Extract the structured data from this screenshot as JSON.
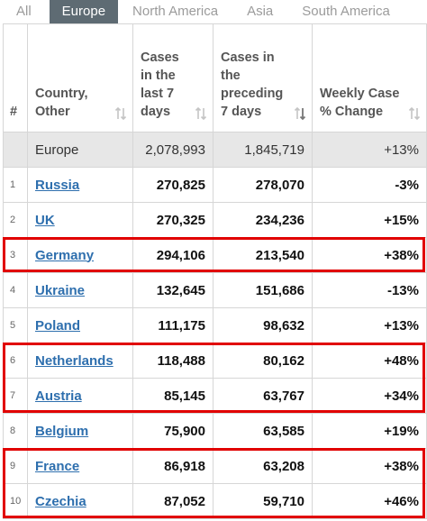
{
  "tabs": [
    "All",
    "Europe",
    "North America",
    "Asia",
    "South America"
  ],
  "active_tab": "Europe",
  "columns": {
    "rank": "#",
    "country": "Country, Other",
    "last7": "Cases in the last 7 days",
    "prev7": "Cases in the preceding 7 days",
    "change": "Weekly Case % Change"
  },
  "summary": {
    "name": "Europe",
    "last7": "2,078,993",
    "prev7": "1,845,719",
    "change": "+13%"
  },
  "rows": [
    {
      "rank": "1",
      "country": "Russia",
      "last7": "270,825",
      "prev7": "278,070",
      "change": "-3%"
    },
    {
      "rank": "2",
      "country": "UK",
      "last7": "270,325",
      "prev7": "234,236",
      "change": "+15%"
    },
    {
      "rank": "3",
      "country": "Germany",
      "last7": "294,106",
      "prev7": "213,540",
      "change": "+38%"
    },
    {
      "rank": "4",
      "country": "Ukraine",
      "last7": "132,645",
      "prev7": "151,686",
      "change": "-13%"
    },
    {
      "rank": "5",
      "country": "Poland",
      "last7": "111,175",
      "prev7": "98,632",
      "change": "+13%"
    },
    {
      "rank": "6",
      "country": "Netherlands",
      "last7": "118,488",
      "prev7": "80,162",
      "change": "+48%"
    },
    {
      "rank": "7",
      "country": "Austria",
      "last7": "85,145",
      "prev7": "63,767",
      "change": "+34%"
    },
    {
      "rank": "8",
      "country": "Belgium",
      "last7": "75,900",
      "prev7": "63,585",
      "change": "+19%"
    },
    {
      "rank": "9",
      "country": "France",
      "last7": "86,918",
      "prev7": "63,208",
      "change": "+38%"
    },
    {
      "rank": "10",
      "country": "Czechia",
      "last7": "87,052",
      "prev7": "59,710",
      "change": "+46%"
    }
  ],
  "colors": {
    "highlight": "#e10000",
    "link": "#2e6fae",
    "active_tab": "#5e6b73",
    "summary_bg": "#e7e7e7"
  },
  "icons": {
    "sort": "sort-arrows-icon",
    "sort_active": "sort-descending-icon"
  }
}
